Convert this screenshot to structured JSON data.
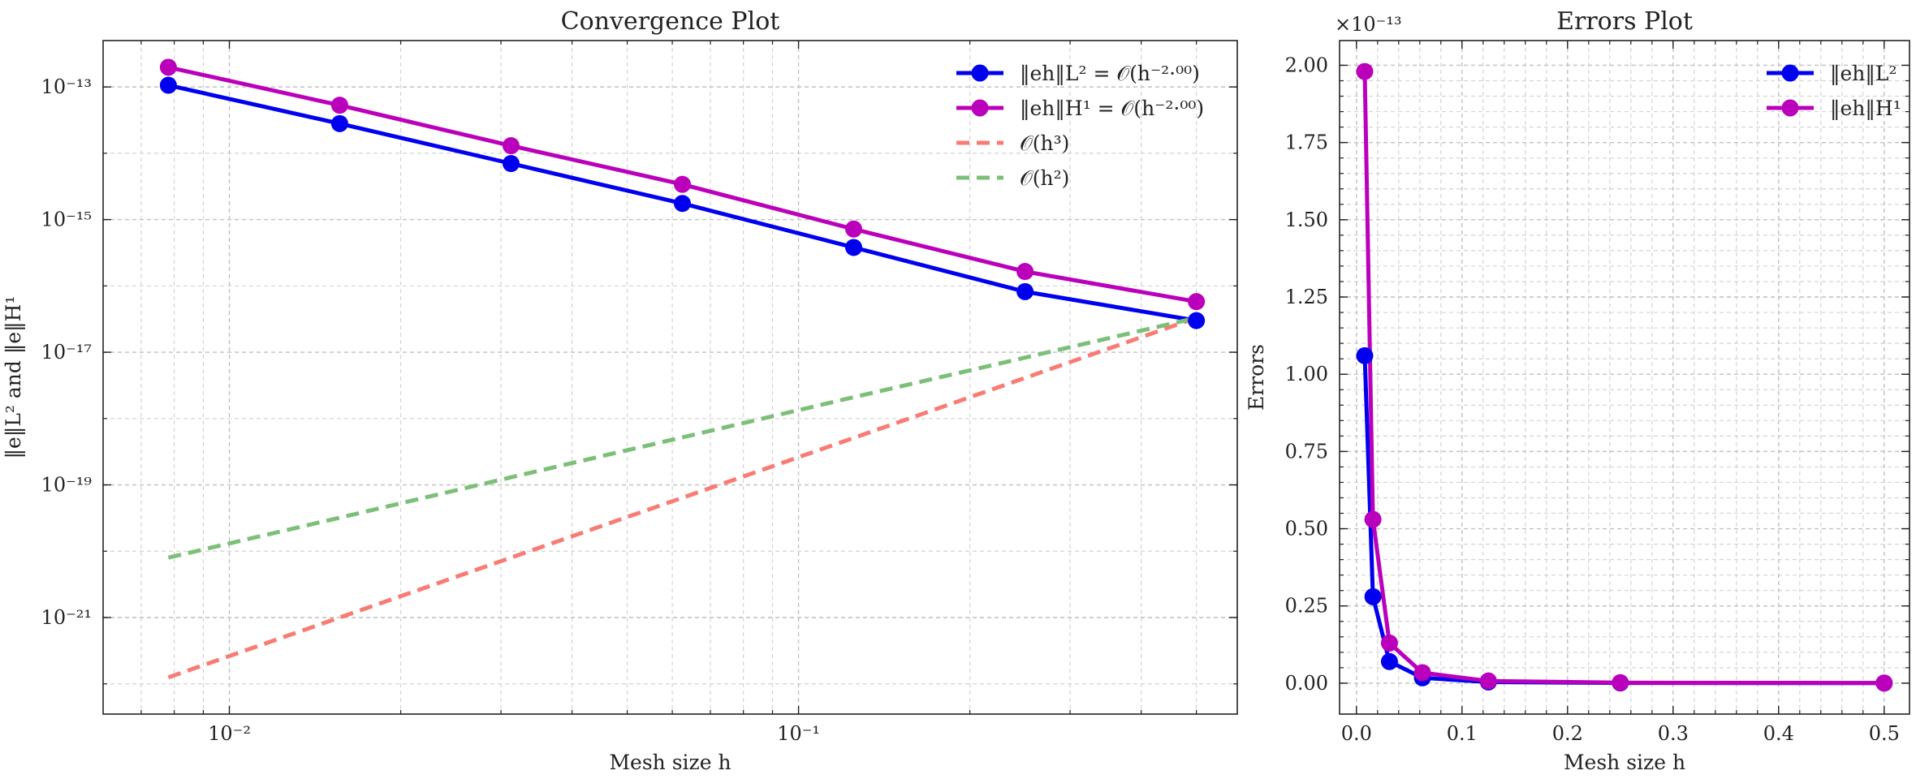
{
  "chart_data": [
    {
      "type": "line",
      "title": "Convergence Plot",
      "xlabel": "Mesh size h",
      "ylabel": "‖e‖L² and ‖e‖H¹",
      "xscale": "log",
      "yscale": "log",
      "xlim": [
        0.006,
        0.59
      ],
      "ylim": [
        3.5e-23,
        5e-13
      ],
      "grid": true,
      "legend_position": "top-right",
      "x_tick_labels": [
        "10⁻²",
        "10⁻¹"
      ],
      "x_ticks": [
        0.01,
        0.1
      ],
      "y_tick_labels": [
        "10⁻²¹",
        "10⁻¹⁹",
        "10⁻¹⁷",
        "10⁻¹⁵",
        "10⁻¹³"
      ],
      "y_ticks": [
        1e-21,
        1e-19,
        1e-17,
        1e-15,
        1e-13
      ],
      "x": [
        0.0078125,
        0.015625,
        0.03125,
        0.0625,
        0.125,
        0.25,
        0.5
      ],
      "series": [
        {
          "name": "‖eh‖L² = 𝒪(h⁻²·⁰⁰)",
          "color": "#0000ee",
          "style": "solid-marker",
          "values": [
            1.06e-13,
            2.8e-14,
            7e-15,
            1.75e-15,
            3.8e-16,
            8.2e-17,
            3e-17
          ]
        },
        {
          "name": "‖eh‖H¹ = 𝒪(h⁻²·⁰⁰)",
          "color": "#bb00bb",
          "style": "solid-marker",
          "values": [
            1.98e-13,
            5.3e-14,
            1.3e-14,
            3.4e-15,
            7.2e-16,
            1.65e-16,
            5.8e-17
          ]
        },
        {
          "name": "𝒪(h³)",
          "color": "#f87c74",
          "style": "dashed",
          "values": [
            1.25e-22,
            1e-21,
            8e-21,
            6.4e-20,
            5.1e-19,
            4.1e-18,
            3.3e-17
          ]
        },
        {
          "name": "𝒪(h²)",
          "color": "#7cbf78",
          "style": "dashed",
          "values": [
            8e-21,
            3.2e-20,
            1.3e-19,
            5.2e-19,
            2.1e-18,
            8.3e-18,
            3.3e-17
          ]
        }
      ]
    },
    {
      "type": "line",
      "title": "Errors Plot",
      "xlabel": "Mesh size h",
      "ylabel": "Errors",
      "multiplier": "×10⁻¹³",
      "xlim": [
        -0.016,
        0.524
      ],
      "ylim": [
        -0.1,
        2.08
      ],
      "grid": true,
      "legend_position": "top-right",
      "x_ticks": [
        0.0,
        0.1,
        0.2,
        0.3,
        0.4,
        0.5
      ],
      "x_tick_labels": [
        "0.0",
        "0.1",
        "0.2",
        "0.3",
        "0.4",
        "0.5"
      ],
      "y_ticks": [
        0.0,
        0.25,
        0.5,
        0.75,
        1.0,
        1.25,
        1.5,
        1.75,
        2.0
      ],
      "y_tick_labels": [
        "0.00",
        "0.25",
        "0.50",
        "0.75",
        "1.00",
        "1.25",
        "1.50",
        "1.75",
        "2.00"
      ],
      "x": [
        0.0078125,
        0.015625,
        0.03125,
        0.0625,
        0.125,
        0.25,
        0.5
      ],
      "series": [
        {
          "name": "‖eh‖L²",
          "color": "#0000ee",
          "style": "solid-marker",
          "values": [
            1.06,
            0.28,
            0.07,
            0.0175,
            0.0038,
            0.0008,
            0.0003
          ]
        },
        {
          "name": "‖eh‖H¹",
          "color": "#bb00bb",
          "style": "solid-marker",
          "values": [
            1.98,
            0.53,
            0.13,
            0.034,
            0.0072,
            0.0017,
            0.0006
          ]
        }
      ]
    }
  ]
}
